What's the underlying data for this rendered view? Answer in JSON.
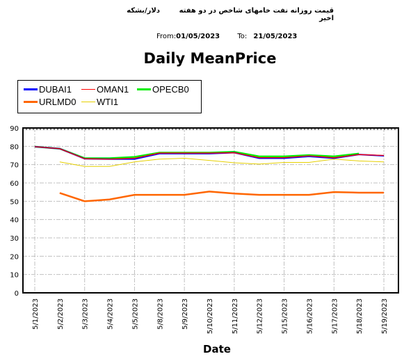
{
  "header": {
    "title_fa": "قیمت روزانه نفت خامهای شاخص در دو هفته اخیر",
    "unit_fa": "دلار/بشکه",
    "from_label": "From:",
    "from_value": "01/05/2023",
    "to_label": "To:",
    "to_value": "21/05/2023"
  },
  "chart_data": {
    "type": "line",
    "title": "Daily MeanPrice",
    "xlabel": "Date",
    "ylabel": "",
    "ylim": [
      0,
      90
    ],
    "yticks": [
      0,
      10,
      20,
      30,
      40,
      50,
      60,
      70,
      80,
      90
    ],
    "grid": true,
    "legend_position": "top-left",
    "categories": [
      "5/1/2023",
      "5/2/2023",
      "5/3/2023",
      "5/4/2023",
      "5/5/2023",
      "5/8/2023",
      "5/9/2023",
      "5/10/2023",
      "5/11/2023",
      "5/12/2023",
      "5/15/2023",
      "5/16/2023",
      "5/17/2023",
      "5/18/2023",
      "5/19/2023"
    ],
    "series": [
      {
        "name": "DUBAI1",
        "color": "#0000ff",
        "values": [
          79.8,
          78.7,
          73.2,
          73.0,
          73.0,
          76.0,
          76.0,
          76.0,
          76.5,
          73.5,
          73.5,
          74.5,
          73.5,
          75.5,
          74.8
        ]
      },
      {
        "name": "OMAN1",
        "color": "#ff0000",
        "values": [
          79.8,
          78.7,
          73.2,
          73.0,
          73.5,
          76.3,
          76.3,
          76.3,
          76.5,
          73.8,
          73.8,
          74.8,
          73.8,
          75.5,
          75.0
        ]
      },
      {
        "name": "OPECB0",
        "color": "#00ee00",
        "values": [
          79.8,
          78.7,
          73.5,
          73.5,
          74.2,
          76.5,
          76.5,
          76.5,
          77.0,
          74.5,
          74.5,
          75.2,
          74.5,
          76.0,
          null
        ]
      },
      {
        "name": "URLMD0",
        "color": "#ff6600",
        "values": [
          null,
          54.5,
          50.0,
          51.0,
          53.5,
          53.5,
          53.5,
          55.3,
          54.2,
          53.5,
          53.5,
          53.5,
          55.0,
          54.7,
          54.7
        ]
      },
      {
        "name": "WTI1",
        "color": "#e6d000",
        "values": [
          null,
          71.5,
          69.0,
          69.0,
          71.5,
          73.0,
          73.5,
          72.3,
          71.0,
          70.3,
          71.2,
          71.2,
          73.0,
          72.0,
          71.5
        ]
      }
    ]
  }
}
